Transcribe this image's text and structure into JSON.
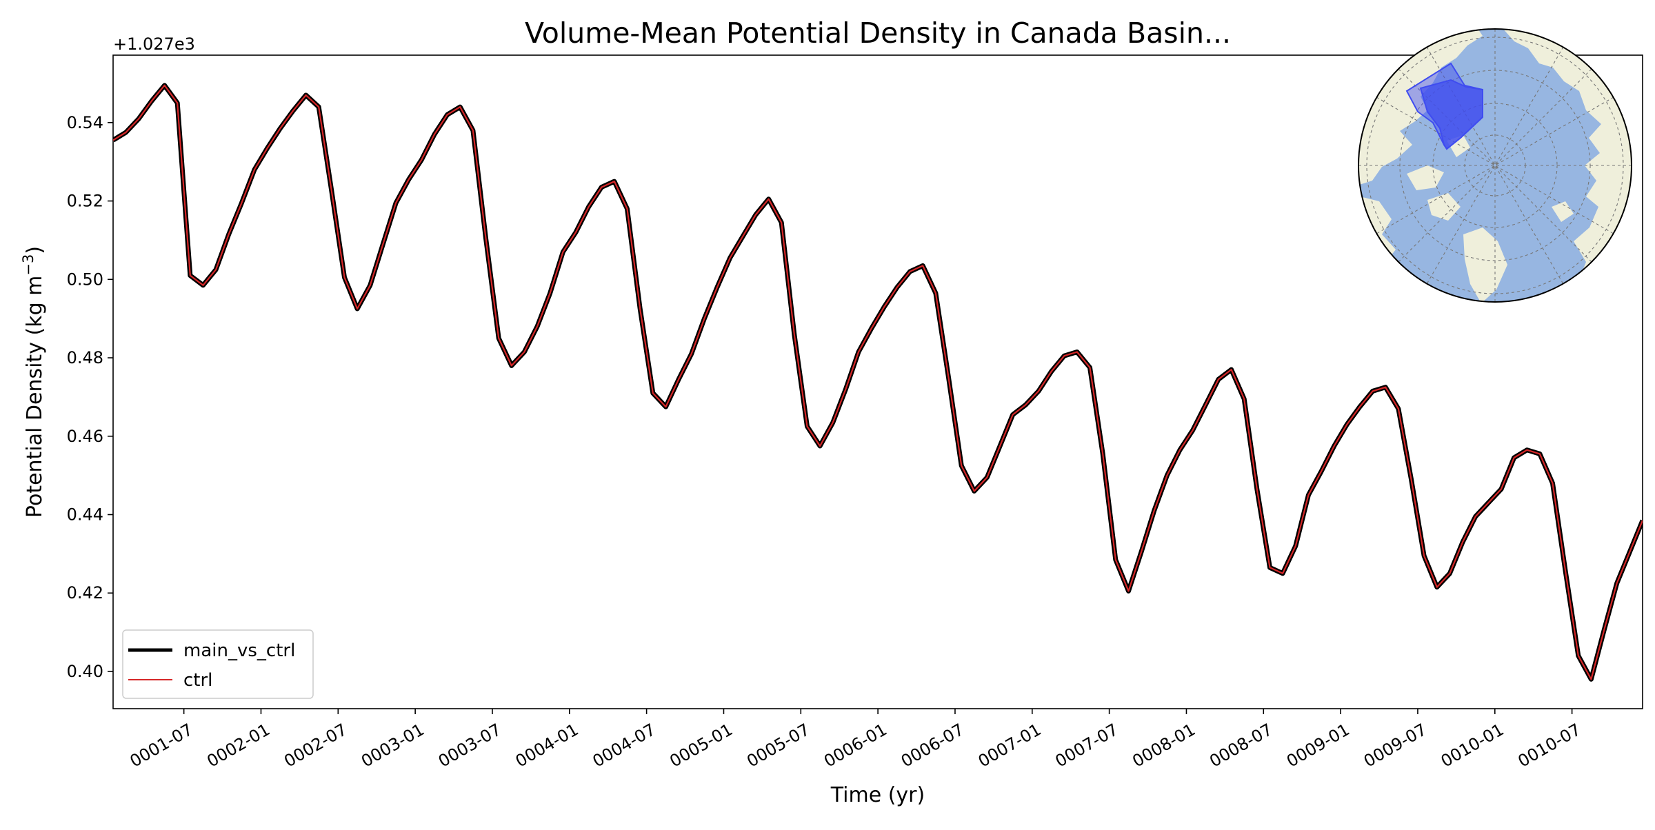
{
  "figure": {
    "title": "Volume-Mean Potential Density in Canada Basin...",
    "xlabel": "Time (yr)",
    "ylabel_main": "Potential Density (kg m",
    "ylabel_exp": "−3",
    "ylabel_close": ")",
    "offset_text": "+1.027e3"
  },
  "chart_data": {
    "type": "line",
    "title": "Volume-Mean Potential Density in Canada Basin...",
    "xlabel": "Time (yr)",
    "ylabel": "Potential Density (kg m⁻³)",
    "y_offset": "+1.027e3",
    "xlim": [
      "0001-01-16",
      "0010-12-16"
    ],
    "ylim": [
      0.3905,
      0.5572
    ],
    "grid": false,
    "legend_position": "lower-left",
    "x_ticks": [
      "0001-07",
      "0002-01",
      "0002-07",
      "0003-01",
      "0003-07",
      "0004-01",
      "0004-07",
      "0005-01",
      "0005-07",
      "0006-01",
      "0006-07",
      "0007-01",
      "0007-07",
      "0008-01",
      "0008-07",
      "0009-01",
      "0009-07",
      "0010-01",
      "0010-07"
    ],
    "y_ticks": [
      "0.40",
      "0.42",
      "0.44",
      "0.46",
      "0.48",
      "0.50",
      "0.52",
      "0.54"
    ],
    "x": [
      "0001-01",
      "0001-02",
      "0001-03",
      "0001-04",
      "0001-05",
      "0001-06",
      "0001-07",
      "0001-08",
      "0001-09",
      "0001-10",
      "0001-11",
      "0001-12",
      "0002-01",
      "0002-02",
      "0002-03",
      "0002-04",
      "0002-05",
      "0002-06",
      "0002-07",
      "0002-08",
      "0002-09",
      "0002-10",
      "0002-11",
      "0002-12",
      "0003-01",
      "0003-02",
      "0003-03",
      "0003-04",
      "0003-05",
      "0003-06",
      "0003-07",
      "0003-08",
      "0003-09",
      "0003-10",
      "0003-11",
      "0003-12",
      "0004-01",
      "0004-02",
      "0004-03",
      "0004-04",
      "0004-05",
      "0004-06",
      "0004-07",
      "0004-08",
      "0004-09",
      "0004-10",
      "0004-11",
      "0004-12",
      "0005-01",
      "0005-02",
      "0005-03",
      "0005-04",
      "0005-05",
      "0005-06",
      "0005-07",
      "0005-08",
      "0005-09",
      "0005-10",
      "0005-11",
      "0005-12",
      "0006-01",
      "0006-02",
      "0006-03",
      "0006-04",
      "0006-05",
      "0006-06",
      "0006-07",
      "0006-08",
      "0006-09",
      "0006-10",
      "0006-11",
      "0006-12",
      "0007-01",
      "0007-02",
      "0007-03",
      "0007-04",
      "0007-05",
      "0007-06",
      "0007-07",
      "0007-08",
      "0007-09",
      "0007-10",
      "0007-11",
      "0007-12",
      "0008-01",
      "0008-02",
      "0008-03",
      "0008-04",
      "0008-05",
      "0008-06",
      "0008-07",
      "0008-08",
      "0008-09",
      "0008-10",
      "0008-11",
      "0008-12",
      "0009-01",
      "0009-02",
      "0009-03",
      "0009-04",
      "0009-05",
      "0009-06",
      "0009-07",
      "0009-08",
      "0009-09",
      "0009-10",
      "0009-11",
      "0009-12",
      "0010-01",
      "0010-02",
      "0010-03",
      "0010-04",
      "0010-05",
      "0010-06",
      "0010-07",
      "0010-08",
      "0010-09",
      "0010-10",
      "0010-11",
      "0010-12"
    ],
    "series": [
      {
        "name": "main_vs_ctrl",
        "color": "#000000",
        "values": [
          0.5355,
          0.5375,
          0.541,
          0.5455,
          0.5495,
          0.545,
          0.501,
          0.4985,
          0.5025,
          0.5115,
          0.5195,
          0.528,
          0.5335,
          0.5385,
          0.543,
          0.547,
          0.544,
          0.5225,
          0.5005,
          0.4925,
          0.4985,
          0.509,
          0.5195,
          0.5255,
          0.5305,
          0.537,
          0.542,
          0.544,
          0.538,
          0.5105,
          0.485,
          0.478,
          0.4815,
          0.488,
          0.4965,
          0.507,
          0.512,
          0.5185,
          0.5235,
          0.525,
          0.518,
          0.4925,
          0.471,
          0.4675,
          0.4745,
          0.481,
          0.49,
          0.498,
          0.5055,
          0.511,
          0.5165,
          0.5205,
          0.5145,
          0.486,
          0.4625,
          0.4575,
          0.4635,
          0.472,
          0.4815,
          0.4875,
          0.493,
          0.498,
          0.502,
          0.5035,
          0.4965,
          0.475,
          0.4525,
          0.446,
          0.4495,
          0.4575,
          0.4655,
          0.468,
          0.4715,
          0.4765,
          0.4805,
          0.4815,
          0.4775,
          0.4555,
          0.4285,
          0.4205,
          0.4305,
          0.441,
          0.45,
          0.4565,
          0.4615,
          0.468,
          0.4745,
          0.477,
          0.4695,
          0.4465,
          0.4265,
          0.425,
          0.432,
          0.445,
          0.451,
          0.4575,
          0.463,
          0.4675,
          0.4715,
          0.4725,
          0.467,
          0.449,
          0.4295,
          0.4215,
          0.425,
          0.433,
          0.4395,
          0.443,
          0.4465,
          0.4545,
          0.4565,
          0.4555,
          0.448,
          0.4255,
          0.404,
          0.398,
          0.4105,
          0.4225,
          0.4305,
          0.4385
        ]
      },
      {
        "name": "ctrl",
        "color": "#d62728",
        "same_values_as": "main_vs_ctrl"
      }
    ]
  },
  "legend": {
    "items": [
      {
        "label": "main_vs_ctrl",
        "color": "#000000"
      },
      {
        "label": "ctrl",
        "color": "#d62728"
      }
    ]
  },
  "inset_map": {
    "projection": "north polar stereographic",
    "land_color": "#efefdb",
    "ocean_color": "#97b6e1",
    "region_highlight_color": "#3f4cf0"
  }
}
